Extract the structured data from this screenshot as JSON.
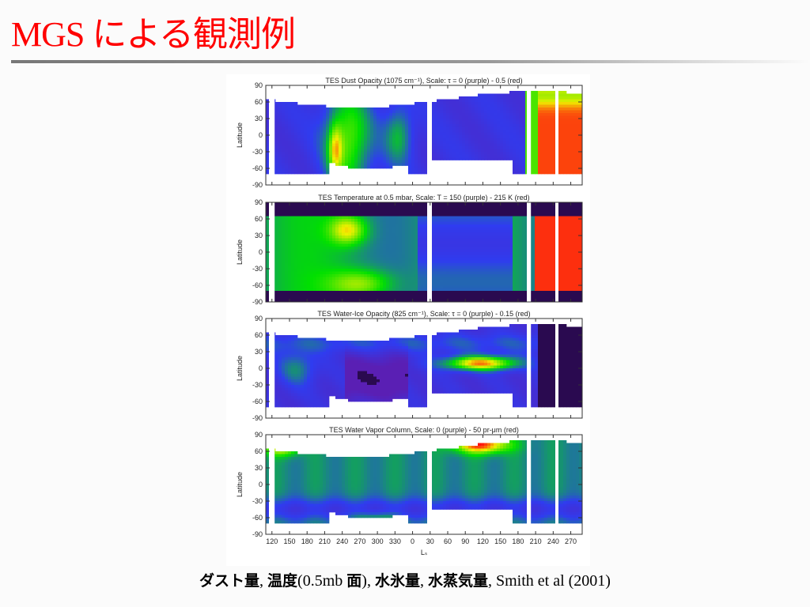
{
  "slide": {
    "title": "MGS による観測例",
    "caption_parts": [
      {
        "text": "ダスト量",
        "jp": true
      },
      {
        "text": ", ",
        "jp": false
      },
      {
        "text": "温度",
        "jp": true
      },
      {
        "text": "(0.5mb ",
        "jp": false
      },
      {
        "text": "面",
        "jp": true
      },
      {
        "text": "), ",
        "jp": false
      },
      {
        "text": "水氷量",
        "jp": true
      },
      {
        "text": ", ",
        "jp": false
      },
      {
        "text": "水蒸気量",
        "jp": true
      },
      {
        "text": ", Smith et al (2001)",
        "jp": false
      }
    ]
  },
  "colors": {
    "purple": "#5a1fb4",
    "blue": "#2f3cf0",
    "green": "#00e000",
    "yellow": "#f0f000",
    "red": "#ff1010",
    "dark": "#2a0a50"
  },
  "chart_data": [
    {
      "type": "heatmap",
      "title": "TES Dust Opacity (1075 cm⁻¹),  Scale: τ = 0 (purple) - 0.5 (red)",
      "ylabel": "Latitude",
      "yticks": [
        "90",
        "60",
        "30",
        "0",
        "-30",
        "-60",
        "-90"
      ],
      "ylim": [
        -90,
        90
      ],
      "field": "dust"
    },
    {
      "type": "heatmap",
      "title": "TES Temperature at 0.5 mbar,  Scale: T = 150 (purple) - 215 K (red)",
      "ylabel": "Latitude",
      "yticks": [
        "90",
        "60",
        "30",
        "0",
        "-30",
        "-60",
        "-90"
      ],
      "ylim": [
        -90,
        90
      ],
      "field": "temp"
    },
    {
      "type": "heatmap",
      "title": "TES Water-Ice Opacity (825 cm⁻¹),  Scale: τ = 0 (purple) - 0.15 (red)",
      "ylabel": "Latitude",
      "yticks": [
        "90",
        "60",
        "30",
        "0",
        "-30",
        "-60",
        "-90"
      ],
      "ylim": [
        -90,
        90
      ],
      "field": "ice"
    },
    {
      "type": "heatmap",
      "title": "TES Water Vapor Column,  Scale: 0 (purple) - 50 pr-μm (red)",
      "ylabel": "Latitude",
      "yticks": [
        "90",
        "60",
        "30",
        "0",
        "-30",
        "-60",
        "-90"
      ],
      "ylim": [
        -90,
        90
      ],
      "xlabel": "Lₛ",
      "xticks": [
        "120",
        "150",
        "180",
        "210",
        "240",
        "270",
        "300",
        "330",
        "0",
        "30",
        "60",
        "90",
        "120",
        "150",
        "180",
        "210",
        "240",
        "270"
      ],
      "field": "vapor"
    }
  ]
}
